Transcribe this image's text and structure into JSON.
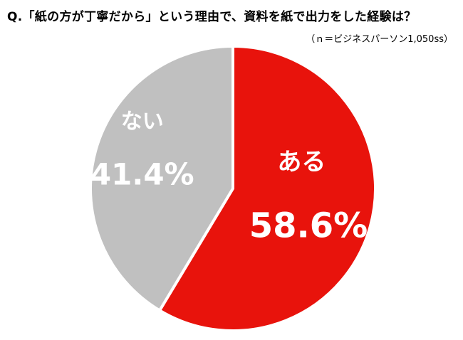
{
  "title": "Q.「紙の方が丁寧だから」という理由で、資料を紙で出力をした経験は？",
  "note": "（ｎ＝ビジネスパーソン1,050ss）",
  "colors": {
    "yes": "#e8130c",
    "no": "#c0c0c0",
    "separator": "#ffffff"
  },
  "chart_data": {
    "type": "pie",
    "title": "Q.「紙の方が丁寧だから」という理由で、資料を紙で出力をした経験は？",
    "slices": [
      {
        "label": "ある",
        "value": 58.6,
        "value_label": "58.6%",
        "color": "#e8130c"
      },
      {
        "label": "ない",
        "value": 41.4,
        "value_label": "41.4%",
        "color": "#c0c0c0"
      }
    ],
    "start_angle": "12 o'clock",
    "direction": "clockwise",
    "legend": "none",
    "labels": "inside slices"
  }
}
